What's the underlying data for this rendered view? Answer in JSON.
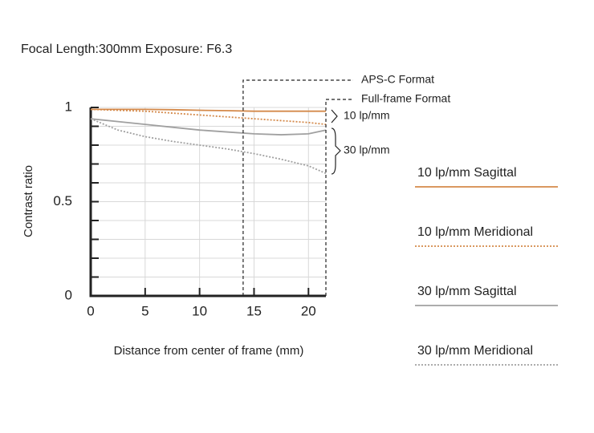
{
  "chart_data": {
    "type": "line",
    "title": "Focal Length:300mm  Exposure: F6.3",
    "xlabel": "Distance from center of frame (mm)",
    "ylabel": "Contrast ratio",
    "x": [
      0,
      2.5,
      5,
      7.5,
      10,
      12.5,
      15,
      17.5,
      20,
      21.6
    ],
    "series": [
      {
        "name": "10 lp/mm Sagittal",
        "color": "#d4894a",
        "style": "solid",
        "values": [
          0.99,
          0.99,
          0.99,
          0.988,
          0.985,
          0.983,
          0.98,
          0.98,
          0.98,
          0.98
        ]
      },
      {
        "name": "10 lp/mm Meridional",
        "color": "#d4894a",
        "style": "dotted",
        "values": [
          0.99,
          0.985,
          0.98,
          0.97,
          0.96,
          0.95,
          0.94,
          0.93,
          0.92,
          0.91
        ]
      },
      {
        "name": "30 lp/mm Sagittal",
        "color": "#a0a0a0",
        "style": "solid",
        "values": [
          0.94,
          0.925,
          0.91,
          0.895,
          0.88,
          0.87,
          0.86,
          0.855,
          0.86,
          0.88
        ]
      },
      {
        "name": "30 lp/mm Meridional",
        "color": "#a0a0a0",
        "style": "dotted",
        "values": [
          0.94,
          0.88,
          0.845,
          0.82,
          0.8,
          0.78,
          0.755,
          0.725,
          0.69,
          0.65
        ]
      }
    ],
    "xlim": [
      0,
      21.6
    ],
    "ylim": [
      0,
      1
    ],
    "xticks": [
      0,
      5,
      10,
      15,
      20
    ],
    "yticks": [
      0,
      0.5,
      1
    ],
    "y_minor_ticks": [
      0.1,
      0.2,
      0.3,
      0.4,
      0.6,
      0.7,
      0.8,
      0.9
    ],
    "grid": true,
    "format_markers": [
      {
        "label": "APS-C Format",
        "x": 14
      },
      {
        "label": "Full-frame Format",
        "x": 21.6
      }
    ],
    "bracket_labels": [
      "10 lp/mm",
      "30 lp/mm"
    ]
  }
}
